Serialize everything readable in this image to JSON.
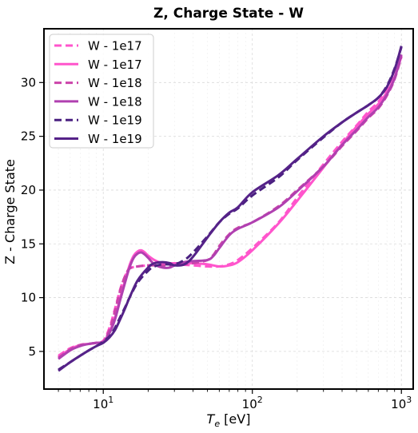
{
  "chart_data": {
    "type": "line",
    "title": "Z, Charge State - W",
    "xlabel_main": "T",
    "xlabel_sub": "e",
    "xlabel_unit": " [eV]",
    "ylabel": "Z - Charge State",
    "xscale": "log",
    "xlim": [
      4,
      1200
    ],
    "ylim": [
      1.5,
      35.0
    ],
    "grid": true,
    "legend_position": "top-left",
    "x_ticks": [
      {
        "value": 10,
        "base": "10",
        "exp": "1"
      },
      {
        "value": 100,
        "base": "10",
        "exp": "2"
      },
      {
        "value": 1000,
        "base": "10",
        "exp": "3"
      }
    ],
    "y_ticks": [
      {
        "value": 5,
        "label": "5"
      },
      {
        "value": 10,
        "label": "10"
      },
      {
        "value": 15,
        "label": "15"
      },
      {
        "value": 20,
        "label": "20"
      },
      {
        "value": 25,
        "label": "25"
      },
      {
        "value": 30,
        "label": "30"
      }
    ],
    "series": [
      {
        "name": "W - 1e17",
        "color": "#ff55cc",
        "dash": true,
        "points": [
          [
            5,
            4.6
          ],
          [
            6,
            5.3
          ],
          [
            7,
            5.6
          ],
          [
            8,
            5.7
          ],
          [
            9,
            5.8
          ],
          [
            10,
            6.0
          ],
          [
            11,
            7.2
          ],
          [
            12,
            9.0
          ],
          [
            13,
            10.8
          ],
          [
            14,
            12.0
          ],
          [
            15,
            12.7
          ],
          [
            17,
            12.9
          ],
          [
            20,
            13.0
          ],
          [
            25,
            13.1
          ],
          [
            30,
            13.1
          ],
          [
            40,
            13.0
          ],
          [
            50,
            12.9
          ],
          [
            60,
            12.9
          ],
          [
            70,
            13.1
          ],
          [
            80,
            13.5
          ],
          [
            100,
            14.6
          ],
          [
            150,
            17.0
          ],
          [
            200,
            19.3
          ],
          [
            300,
            22.4
          ],
          [
            400,
            24.5
          ],
          [
            500,
            26.0
          ],
          [
            600,
            27.3
          ],
          [
            700,
            28.2
          ],
          [
            800,
            29.4
          ],
          [
            900,
            30.6
          ],
          [
            1000,
            32.4
          ]
        ]
      },
      {
        "name": "W - 1e17",
        "color": "#ff55cc",
        "dash": false,
        "points": [
          [
            5,
            4.5
          ],
          [
            6,
            5.2
          ],
          [
            7,
            5.6
          ],
          [
            8,
            5.7
          ],
          [
            9,
            5.8
          ],
          [
            10,
            5.9
          ],
          [
            11,
            6.8
          ],
          [
            12,
            8.2
          ],
          [
            13,
            10.0
          ],
          [
            14,
            11.6
          ],
          [
            15,
            13.0
          ],
          [
            16,
            13.9
          ],
          [
            17,
            14.3
          ],
          [
            18,
            14.4
          ],
          [
            19,
            14.2
          ],
          [
            20,
            13.9
          ],
          [
            22,
            13.5
          ],
          [
            25,
            13.2
          ],
          [
            30,
            13.2
          ],
          [
            40,
            13.2
          ],
          [
            50,
            13.1
          ],
          [
            60,
            12.9
          ],
          [
            70,
            13.0
          ],
          [
            80,
            13.3
          ],
          [
            100,
            14.4
          ],
          [
            150,
            16.9
          ],
          [
            200,
            19.0
          ],
          [
            300,
            22.1
          ],
          [
            400,
            24.3
          ],
          [
            500,
            25.9
          ],
          [
            600,
            27.1
          ],
          [
            700,
            28.0
          ],
          [
            800,
            29.1
          ],
          [
            900,
            30.5
          ],
          [
            1000,
            32.5
          ]
        ]
      },
      {
        "name": "W - 1e18",
        "color": "#cc44aa",
        "dash": true,
        "points": [
          [
            5,
            4.4
          ],
          [
            6,
            5.2
          ],
          [
            7,
            5.6
          ],
          [
            8,
            5.7
          ],
          [
            9,
            5.8
          ],
          [
            10,
            5.9
          ],
          [
            11,
            7.0
          ],
          [
            12,
            8.8
          ],
          [
            13,
            10.7
          ],
          [
            14,
            12.0
          ],
          [
            15,
            12.7
          ],
          [
            17,
            12.9
          ],
          [
            20,
            13.0
          ],
          [
            25,
            13.0
          ],
          [
            30,
            13.0
          ],
          [
            40,
            13.2
          ],
          [
            50,
            13.5
          ],
          [
            55,
            14.0
          ],
          [
            60,
            14.8
          ],
          [
            70,
            15.9
          ],
          [
            80,
            16.5
          ],
          [
            100,
            17.0
          ],
          [
            150,
            18.5
          ],
          [
            200,
            20.0
          ],
          [
            300,
            22.2
          ],
          [
            400,
            24.1
          ],
          [
            500,
            25.5
          ],
          [
            600,
            26.7
          ],
          [
            700,
            27.6
          ],
          [
            800,
            28.8
          ],
          [
            900,
            30.3
          ],
          [
            1000,
            32.4
          ]
        ]
      },
      {
        "name": "W - 1e18",
        "color": "#b040b0",
        "dash": false,
        "points": [
          [
            5,
            4.3
          ],
          [
            6,
            5.1
          ],
          [
            7,
            5.5
          ],
          [
            8,
            5.7
          ],
          [
            9,
            5.8
          ],
          [
            10,
            5.9
          ],
          [
            11,
            6.7
          ],
          [
            12,
            8.0
          ],
          [
            13,
            9.8
          ],
          [
            14,
            11.4
          ],
          [
            15,
            12.8
          ],
          [
            16,
            13.7
          ],
          [
            17,
            14.1
          ],
          [
            18,
            14.2
          ],
          [
            19,
            14.0
          ],
          [
            20,
            13.7
          ],
          [
            22,
            13.1
          ],
          [
            25,
            12.8
          ],
          [
            28,
            12.8
          ],
          [
            30,
            13.0
          ],
          [
            35,
            13.3
          ],
          [
            40,
            13.4
          ],
          [
            50,
            13.5
          ],
          [
            55,
            13.9
          ],
          [
            60,
            14.6
          ],
          [
            70,
            15.8
          ],
          [
            80,
            16.4
          ],
          [
            100,
            17.0
          ],
          [
            150,
            18.4
          ],
          [
            200,
            19.9
          ],
          [
            300,
            22.2
          ],
          [
            400,
            24.2
          ],
          [
            500,
            25.6
          ],
          [
            600,
            26.8
          ],
          [
            700,
            27.7
          ],
          [
            800,
            28.9
          ],
          [
            900,
            30.4
          ],
          [
            1000,
            32.6
          ]
        ]
      },
      {
        "name": "W - 1e19",
        "color": "#4a2080",
        "dash": true,
        "points": [
          [
            5,
            3.3
          ],
          [
            6,
            4.0
          ],
          [
            7,
            4.6
          ],
          [
            8,
            5.1
          ],
          [
            9,
            5.5
          ],
          [
            10,
            5.9
          ],
          [
            11,
            6.4
          ],
          [
            12,
            7.2
          ],
          [
            13,
            8.2
          ],
          [
            14,
            9.1
          ],
          [
            15,
            10.0
          ],
          [
            17,
            11.4
          ],
          [
            20,
            12.5
          ],
          [
            22,
            12.9
          ],
          [
            25,
            13.1
          ],
          [
            30,
            13.1
          ],
          [
            35,
            13.5
          ],
          [
            40,
            14.2
          ],
          [
            50,
            15.7
          ],
          [
            60,
            17.0
          ],
          [
            70,
            17.8
          ],
          [
            80,
            18.3
          ],
          [
            100,
            19.5
          ],
          [
            150,
            21.2
          ],
          [
            200,
            22.8
          ],
          [
            300,
            24.9
          ],
          [
            400,
            26.3
          ],
          [
            500,
            27.2
          ],
          [
            600,
            27.9
          ],
          [
            700,
            28.6
          ],
          [
            800,
            29.7
          ],
          [
            900,
            31.3
          ],
          [
            1000,
            33.3
          ]
        ]
      },
      {
        "name": "W - 1e19",
        "color": "#552288",
        "dash": false,
        "points": [
          [
            5,
            3.2
          ],
          [
            6,
            4.0
          ],
          [
            7,
            4.6
          ],
          [
            8,
            5.1
          ],
          [
            9,
            5.5
          ],
          [
            10,
            5.8
          ],
          [
            11,
            6.3
          ],
          [
            12,
            7.0
          ],
          [
            13,
            8.0
          ],
          [
            14,
            9.0
          ],
          [
            15,
            10.0
          ],
          [
            17,
            11.6
          ],
          [
            20,
            12.8
          ],
          [
            22,
            13.2
          ],
          [
            25,
            13.3
          ],
          [
            28,
            13.2
          ],
          [
            30,
            13.0
          ],
          [
            35,
            13.1
          ],
          [
            40,
            13.8
          ],
          [
            50,
            15.6
          ],
          [
            60,
            17.0
          ],
          [
            70,
            17.9
          ],
          [
            80,
            18.4
          ],
          [
            100,
            19.8
          ],
          [
            150,
            21.4
          ],
          [
            200,
            22.9
          ],
          [
            300,
            25.0
          ],
          [
            400,
            26.3
          ],
          [
            500,
            27.2
          ],
          [
            600,
            27.9
          ],
          [
            700,
            28.6
          ],
          [
            800,
            29.6
          ],
          [
            900,
            31.2
          ],
          [
            1000,
            33.4
          ]
        ]
      }
    ]
  }
}
